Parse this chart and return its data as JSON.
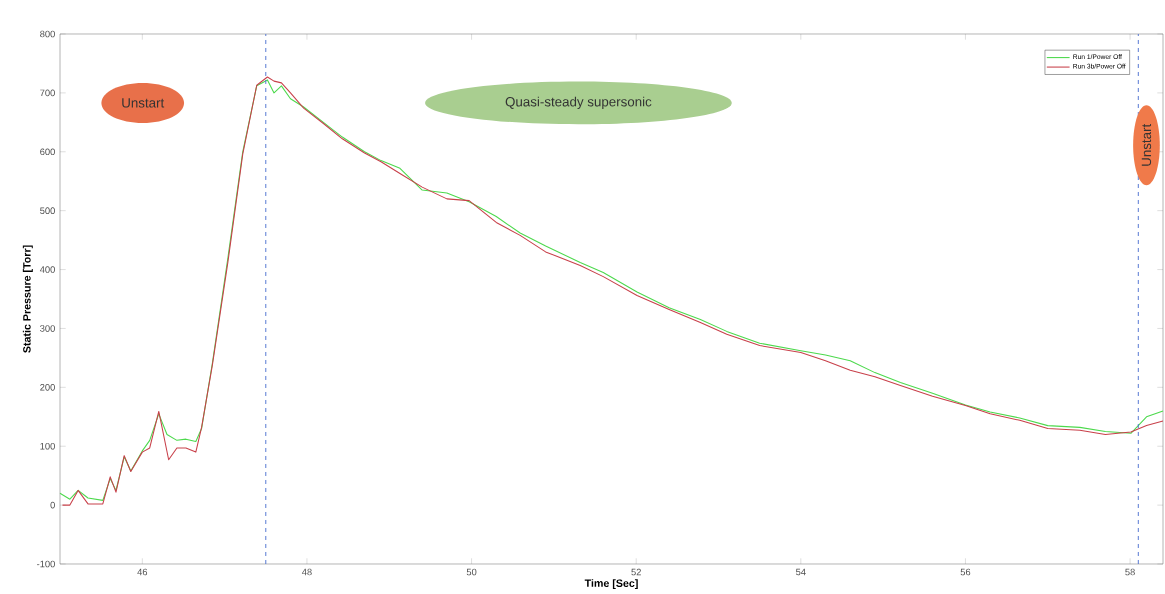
{
  "chart_data": {
    "type": "line",
    "xlabel": "Time [Sec]",
    "ylabel": "Static Pressure [Torr]",
    "xlim": [
      45,
      58.4
    ],
    "xticks": [
      46,
      48,
      50,
      52,
      54,
      56,
      58
    ],
    "ylim": [
      -100,
      800
    ],
    "yticks": [
      -100,
      0,
      100,
      200,
      300,
      400,
      500,
      600,
      700,
      800
    ],
    "grid": false,
    "legend": "top right",
    "line_style": "solid",
    "marker": "none",
    "annotations": [
      "Unstart",
      "Quasi-steady supersonic",
      "Unstart"
    ],
    "ref_lines": [
      {
        "axis": "x",
        "value": 47.5,
        "color": "#4a6fd0",
        "line_style": "dashed"
      },
      {
        "axis": "x",
        "value": 58.1,
        "color": "#4a6fd0",
        "line_style": "dashed"
      }
    ],
    "series": [
      {
        "name": "Run 1/Power Off",
        "color": "#4cd94c",
        "x": [
          45.0,
          45.12,
          45.22,
          45.34,
          45.52,
          45.61,
          45.68,
          45.78,
          45.86,
          46.0,
          46.09,
          46.2,
          46.3,
          46.42,
          46.53,
          46.65,
          46.72,
          46.85,
          47.04,
          47.22,
          47.39,
          47.52,
          47.6,
          47.69,
          47.8,
          47.96,
          48.2,
          48.43,
          48.7,
          48.9,
          49.13,
          49.4,
          49.7,
          49.97,
          50.3,
          50.59,
          50.9,
          51.32,
          51.6,
          52.01,
          52.4,
          52.78,
          53.1,
          53.5,
          54.0,
          54.3,
          54.6,
          54.9,
          55.21,
          55.6,
          56.0,
          56.3,
          56.66,
          57.0,
          57.39,
          57.7,
          58.01,
          58.2,
          58.4
        ],
        "values": [
          20,
          10,
          25,
          12,
          8,
          45,
          25,
          82,
          58,
          92,
          110,
          155,
          120,
          110,
          112,
          108,
          130,
          240,
          420,
          600,
          712,
          722,
          700,
          712,
          690,
          676,
          650,
          625,
          600,
          585,
          572,
          535,
          530,
          515,
          490,
          462,
          440,
          412,
          395,
          362,
          335,
          315,
          295,
          275,
          262,
          255,
          245,
          225,
          208,
          190,
          170,
          158,
          148,
          135,
          132,
          125,
          122,
          150,
          160
        ]
      },
      {
        "name": "Run 3b/Power Off",
        "color": "#c8404a",
        "x": [
          45.03,
          45.12,
          45.22,
          45.34,
          45.52,
          45.61,
          45.68,
          45.78,
          45.86,
          46.0,
          46.09,
          46.2,
          46.32,
          46.42,
          46.53,
          46.65,
          46.72,
          46.85,
          47.04,
          47.22,
          47.39,
          47.52,
          47.6,
          47.69,
          47.8,
          47.96,
          48.2,
          48.43,
          48.7,
          48.9,
          49.13,
          49.4,
          49.7,
          49.97,
          50.3,
          50.59,
          50.9,
          51.32,
          51.6,
          52.01,
          52.4,
          52.78,
          53.1,
          53.5,
          54.0,
          54.3,
          54.6,
          54.9,
          55.21,
          55.6,
          56.0,
          56.3,
          56.66,
          57.0,
          57.39,
          57.7,
          58.01,
          58.2,
          58.4
        ],
        "values": [
          0,
          0,
          25,
          2,
          2,
          48,
          22,
          84,
          57,
          90,
          97,
          159,
          77,
          97,
          97,
          90,
          132,
          237,
          413,
          596,
          713,
          727,
          720,
          717,
          700,
          674,
          648,
          622,
          598,
          583,
          563,
          540,
          520,
          517,
          480,
          458,
          430,
          407,
          388,
          356,
          332,
          310,
          290,
          271,
          259,
          245,
          229,
          218,
          203,
          185,
          169,
          155,
          144,
          130,
          127,
          120,
          124,
          135,
          143
        ]
      }
    ]
  }
}
